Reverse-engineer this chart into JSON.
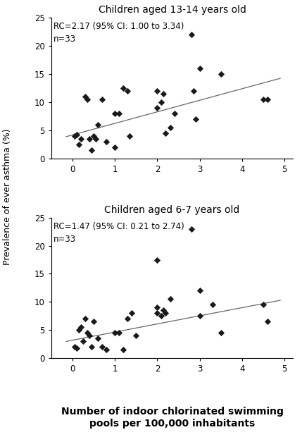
{
  "plot1": {
    "title": "Children aged 13-14 years old",
    "annotation": "RC=2.17 (95% CI: 1.00 to 3.34)\nn=33",
    "scatter_x": [
      0.05,
      0.1,
      0.15,
      0.2,
      0.3,
      0.35,
      0.4,
      0.45,
      0.5,
      0.55,
      0.6,
      0.7,
      0.8,
      1.0,
      1.0,
      1.1,
      1.2,
      1.3,
      1.35,
      2.0,
      2.0,
      2.1,
      2.15,
      2.2,
      2.3,
      2.4,
      2.8,
      2.85,
      2.9,
      3.0,
      3.5,
      4.5,
      4.6
    ],
    "scatter_y": [
      4.0,
      4.2,
      2.5,
      3.5,
      11.0,
      10.5,
      3.5,
      1.5,
      4.0,
      3.5,
      6.0,
      10.5,
      3.0,
      8.0,
      2.0,
      8.0,
      12.5,
      12.0,
      4.0,
      12.0,
      9.0,
      10.0,
      11.5,
      4.5,
      5.5,
      8.0,
      22.0,
      12.0,
      7.0,
      16.0,
      15.0,
      10.5,
      10.5
    ],
    "line_x": [
      -0.15,
      4.9
    ],
    "line_y": [
      3.85,
      14.2
    ],
    "xlim": [
      -0.5,
      5.2
    ],
    "ylim": [
      0,
      25
    ],
    "yticks": [
      0,
      5,
      10,
      15,
      20,
      25
    ],
    "xticks": [
      0,
      1,
      2,
      3,
      4,
      5
    ]
  },
  "plot2": {
    "title": "Children aged 6-7 years old",
    "annotation": "RC=1.47 (95% CI: 0.21 to 2.74)\nn=33",
    "scatter_x": [
      0.05,
      0.1,
      0.15,
      0.2,
      0.25,
      0.3,
      0.35,
      0.4,
      0.45,
      0.5,
      0.6,
      0.7,
      0.8,
      1.0,
      1.1,
      1.2,
      1.3,
      1.4,
      1.5,
      2.0,
      2.0,
      2.0,
      2.1,
      2.15,
      2.2,
      2.3,
      2.8,
      3.0,
      3.0,
      3.3,
      3.5,
      4.5,
      4.6
    ],
    "scatter_y": [
      2.0,
      1.8,
      5.0,
      5.5,
      3.0,
      7.0,
      4.5,
      4.0,
      2.0,
      6.5,
      3.5,
      2.0,
      1.5,
      4.5,
      4.5,
      1.5,
      7.0,
      8.0,
      4.0,
      17.5,
      8.0,
      9.0,
      7.5,
      8.5,
      8.0,
      10.5,
      23.0,
      12.0,
      7.5,
      9.5,
      4.5,
      9.5,
      6.5
    ],
    "line_x": [
      -0.15,
      4.9
    ],
    "line_y": [
      3.0,
      10.3
    ],
    "xlim": [
      -0.5,
      5.2
    ],
    "ylim": [
      0,
      25
    ],
    "yticks": [
      0,
      5,
      10,
      15,
      20,
      25
    ],
    "xticks": [
      0,
      1,
      2,
      3,
      4,
      5
    ]
  },
  "ylabel": "Prevalence of ever asthma (%)",
  "xlabel": "Number of indoor chlorinated swimming\npools per 100,000 inhabitants",
  "scatter_color": "#1a1a1a",
  "line_color": "#666666",
  "marker_size": 22,
  "annotation_fontsize": 8.5,
  "title_fontsize": 10,
  "label_fontsize": 10,
  "tick_fontsize": 8.5,
  "ylabel_fontsize": 9
}
